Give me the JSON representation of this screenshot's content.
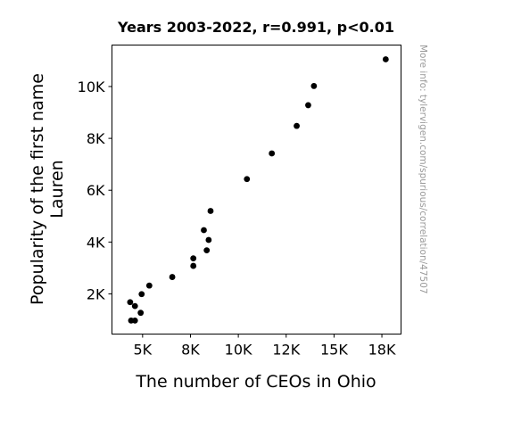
{
  "chart_data": {
    "type": "scatter",
    "title": "Years 2003-2022, r=0.991, p<0.01",
    "xlabel": "The number of CEOs in Ohio",
    "ylabel": [
      "Popularity of the first name",
      "Lauren"
    ],
    "xlim": [
      3400,
      18500
    ],
    "ylim": [
      450,
      11600
    ],
    "xticks": [
      {
        "value": 5000,
        "label": "5K"
      },
      {
        "value": 7500,
        "label": "8K"
      },
      {
        "value": 10000,
        "label": "10K"
      },
      {
        "value": 12500,
        "label": "12K"
      },
      {
        "value": 15000,
        "label": "15K"
      },
      {
        "value": 17500,
        "label": "18K"
      }
    ],
    "yticks": [
      {
        "value": 2000,
        "label": "2K"
      },
      {
        "value": 4000,
        "label": "4K"
      },
      {
        "value": 6000,
        "label": "6K"
      },
      {
        "value": 8000,
        "label": "8K"
      },
      {
        "value": 10000,
        "label": "10K"
      }
    ],
    "grid": false,
    "marker_color": "#000000",
    "points": [
      {
        "x": 17700,
        "y": 11050
      },
      {
        "x": 13950,
        "y": 10020
      },
      {
        "x": 13650,
        "y": 9280
      },
      {
        "x": 13050,
        "y": 8480
      },
      {
        "x": 11750,
        "y": 7420
      },
      {
        "x": 10450,
        "y": 6430
      },
      {
        "x": 8550,
        "y": 5200
      },
      {
        "x": 8200,
        "y": 4460
      },
      {
        "x": 8450,
        "y": 4080
      },
      {
        "x": 8350,
        "y": 3680
      },
      {
        "x": 7650,
        "y": 3370
      },
      {
        "x": 7650,
        "y": 3080
      },
      {
        "x": 6550,
        "y": 2650
      },
      {
        "x": 5350,
        "y": 2320
      },
      {
        "x": 4950,
        "y": 1990
      },
      {
        "x": 4350,
        "y": 1680
      },
      {
        "x": 4600,
        "y": 1530
      },
      {
        "x": 4900,
        "y": 1270
      },
      {
        "x": 4400,
        "y": 970
      },
      {
        "x": 4600,
        "y": 970
      }
    ]
  },
  "watermark": "More info: tylervigen.com/spurious/correlation/47507"
}
